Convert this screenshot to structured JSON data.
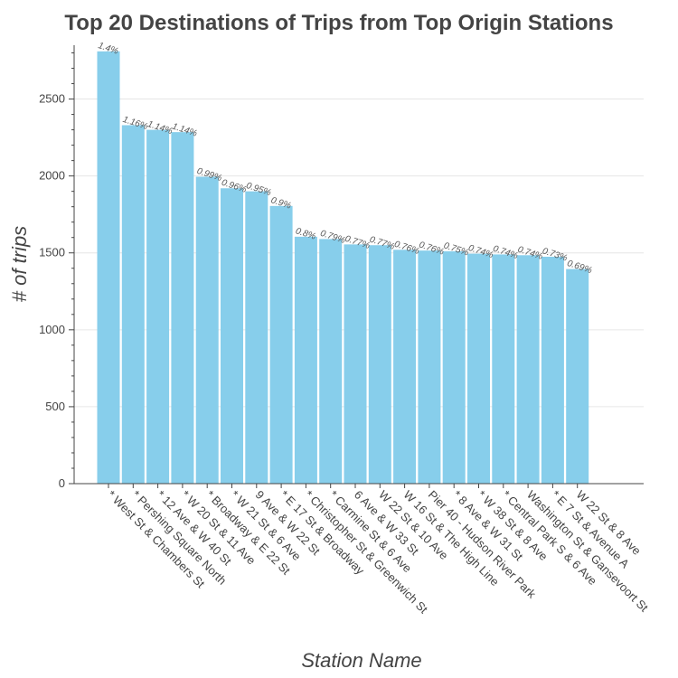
{
  "chart_data": {
    "type": "bar",
    "title": "Top 20 Destinations of Trips from Top Origin Stations",
    "xlabel": "Station Name",
    "ylabel": "# of trips",
    "ylim": [
      0,
      2850
    ],
    "yticks": [
      0,
      500,
      1000,
      1500,
      2000,
      2500
    ],
    "grid": "horizontal",
    "bar_color": "#87ceeb",
    "categories": [
      "* West St & Chambers St",
      "* Pershing Square North",
      "* 12 Ave & W 40 St",
      "* W 20 St & 11 Ave",
      "* Broadway & E 22 St",
      "* W 21 St & 6 Ave",
      "9 Ave & W 22 St",
      "* E 17 St & Broadway",
      "* Christopher St & Greenwich St",
      "* Carmine St & 6 Ave",
      "6 Ave & W 33 St",
      "W 22 St & 10 Ave",
      "W 16 St & The High Line",
      "Pier 40 - Hudson River Park",
      "* 8 Ave & W 31 St",
      "* W 38 St & 8 Ave",
      "* Central Park S & 6 Ave",
      "Washington St & Gansevoort St",
      "* E 7 St & Avenue A",
      "W 22 St & 8 Ave"
    ],
    "values": [
      2810,
      2330,
      2300,
      2285,
      1995,
      1920,
      1900,
      1805,
      1605,
      1590,
      1555,
      1550,
      1520,
      1515,
      1510,
      1495,
      1490,
      1485,
      1475,
      1395
    ],
    "data_labels": [
      "1.4%",
      "1.16%",
      "1.14%",
      "1.14%",
      "0.99%",
      "0.96%",
      "0.95%",
      "0.9%",
      "0.8%",
      "0.79%",
      "0.77%",
      "0.77%",
      "0.76%",
      "0.76%",
      "0.75%",
      "0.74%",
      "0.74%",
      "0.74%",
      "0.73%",
      "0.69%"
    ]
  }
}
